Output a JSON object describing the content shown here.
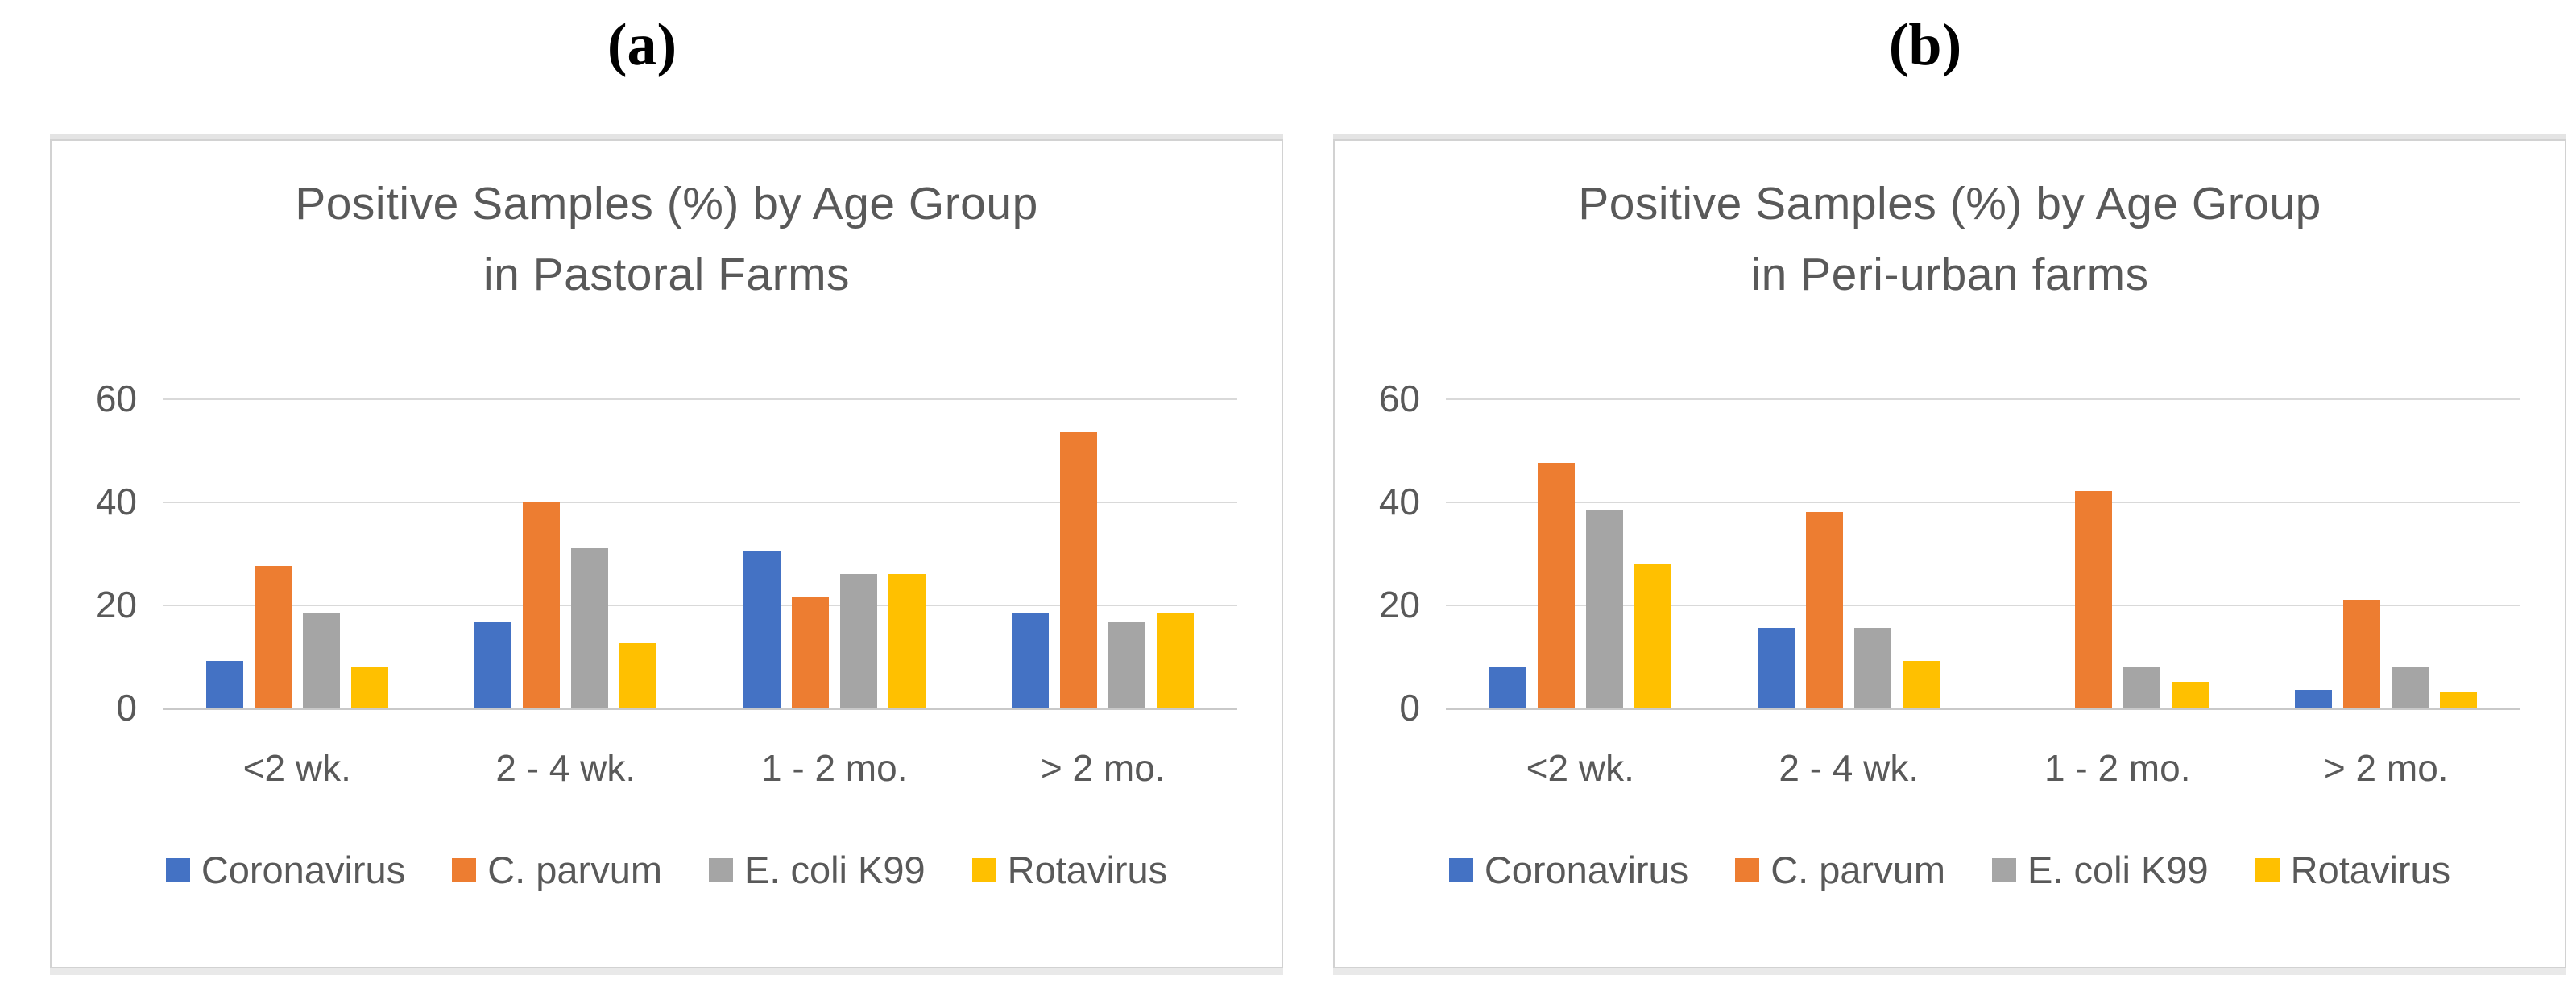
{
  "colors": {
    "coronavirus": "#4472C4",
    "c_parvum": "#ED7D31",
    "e_coli_k99": "#A5A5A5",
    "rotavirus": "#FFC000",
    "gridline": "#D9D9D9",
    "axis_text": "#595959",
    "title_text": "#595959"
  },
  "chart_data": [
    {
      "type": "bar",
      "panel_label": "(a)",
      "title": "Positive Samples (%) by Age Group\nin Pastoral Farms",
      "categories": [
        "<2 wk.",
        "2 - 4 wk.",
        "1 - 2 mo.",
        "> 2 mo."
      ],
      "series": [
        {
          "name": "Coronavirus",
          "color": "#4472C4",
          "values": [
            9,
            16.5,
            30.5,
            18.5
          ]
        },
        {
          "name": "C. parvum",
          "color": "#ED7D31",
          "values": [
            27.5,
            40,
            21.5,
            53.5
          ]
        },
        {
          "name": "E. coli K99",
          "color": "#A5A5A5",
          "values": [
            18.5,
            31,
            26,
            16.5
          ]
        },
        {
          "name": "Rotavirus",
          "color": "#FFC000",
          "values": [
            8,
            12.5,
            26,
            18.5
          ]
        }
      ],
      "xlabel": "",
      "ylabel": "",
      "ylim": [
        0,
        60
      ],
      "yticks": [
        0,
        20,
        40,
        60
      ],
      "grid": true,
      "legend_position": "bottom"
    },
    {
      "type": "bar",
      "panel_label": "(b)",
      "title": "Positive Samples (%) by Age Group\nin Peri-urban farms",
      "categories": [
        "<2 wk.",
        "2 - 4 wk.",
        "1 - 2 mo.",
        "> 2 mo."
      ],
      "series": [
        {
          "name": "Coronavirus",
          "color": "#4472C4",
          "values": [
            8,
            15.5,
            0,
            3.5
          ]
        },
        {
          "name": "C. parvum",
          "color": "#ED7D31",
          "values": [
            47.5,
            38,
            42,
            21
          ]
        },
        {
          "name": "E. coli K99",
          "color": "#A5A5A5",
          "values": [
            38.5,
            15.5,
            8,
            8
          ]
        },
        {
          "name": "Rotavirus",
          "color": "#FFC000",
          "values": [
            28,
            9,
            5,
            3
          ]
        }
      ],
      "xlabel": "",
      "ylabel": "",
      "ylim": [
        0,
        60
      ],
      "yticks": [
        0,
        20,
        40,
        60
      ],
      "grid": true,
      "legend_position": "bottom"
    }
  ]
}
